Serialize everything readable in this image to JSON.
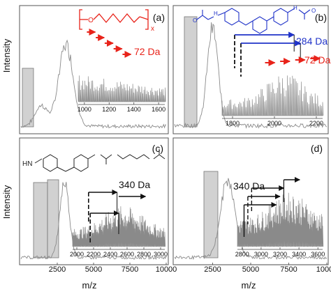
{
  "figure": {
    "y_axis_label": "Intensity",
    "x_axis_label": "m/z",
    "colors": {
      "panel_frame": "#555555",
      "spectrum": "#8a8a8a",
      "highlight_box": "#bdbdbd",
      "red_annotation": "#e8231a",
      "blue_annotation": "#1f32c8",
      "black_annotation": "#111111"
    }
  },
  "chart_data": [
    {
      "panel": "(a)",
      "type": "line",
      "ylabel": "Intensity",
      "xlabel": "",
      "main_xlim": [
        0,
        10000
      ],
      "main_peak_mz": 3100,
      "shaded_region_mz": [
        1050,
        2000
      ],
      "structure_note": "polymer repeat unit bracket with subscript x",
      "structure_subscript": "x",
      "inset": {
        "xlim": [
          950,
          1650
        ],
        "xticks": [
          "1000",
          "1200",
          "1400",
          "1600"
        ],
        "peak_spacing": "72 Da",
        "arrow_color": "red",
        "arrow_start_mz": [
          1020,
          1092,
          1164,
          1236,
          1308
        ]
      }
    },
    {
      "panel": "(b)",
      "type": "line",
      "ylabel": "",
      "xlabel": "",
      "main_xlim": [
        0,
        10000
      ],
      "main_peak_mz": 2500,
      "shaded_region_mz": [
        1950,
        2700
      ],
      "inset": {
        "xlim": [
          1750,
          2230
        ],
        "xticks": [
          "1800",
          "2000",
          "2200"
        ],
        "annotations": [
          {
            "label": "284 Da",
            "color": "blue",
            "from_mz": [
              1810,
              1840
            ],
            "to_mz": [
              2094,
              2124
            ]
          },
          {
            "label": "72 Da",
            "color": "red",
            "arrow_start_mz": [
              1955,
              2027,
              2099,
              2171
            ]
          }
        ]
      }
    },
    {
      "panel": "(c)",
      "type": "line",
      "ylabel": "Intensity",
      "xlabel": "m/z",
      "main_xlim": [
        0,
        10000
      ],
      "main_xticks": [
        "2500",
        "5000",
        "7500",
        "10000"
      ],
      "main_peak_mz": 3000,
      "shaded_regions_mz": [
        [
          1800,
          2500
        ],
        [
          2550,
          3150
        ]
      ],
      "structure_label": "HN",
      "inset": {
        "xlim": [
          1950,
          3050
        ],
        "xticks": [
          "2000",
          "2200",
          "2400",
          "2600",
          "2800",
          "3000"
        ],
        "annotations": [
          {
            "label": "340 Da",
            "color": "black",
            "from_mz": [
              2140,
              2160
            ],
            "to_mz": [
              2480,
              2500,
              2820
            ]
          }
        ]
      }
    },
    {
      "panel": "(d)",
      "type": "line",
      "ylabel": "",
      "xlabel": "m/z",
      "main_xlim": [
        0,
        10000
      ],
      "main_xticks": [
        "2500",
        "5000",
        "7500",
        "10000"
      ],
      "main_peak_mz": 3500,
      "shaded_region_mz": [
        2900,
        3700
      ],
      "inset": {
        "xlim": [
          2750,
          3650
        ],
        "xticks": [
          "2800",
          "3000",
          "3200",
          "3400",
          "3600"
        ],
        "annotations": [
          {
            "label": "340 Da",
            "color": "black",
            "from_mz": [
              2820,
              2860,
              2900
            ],
            "to_mz": [
              3160,
              3200,
              3240,
              3290
            ]
          }
        ]
      }
    }
  ]
}
